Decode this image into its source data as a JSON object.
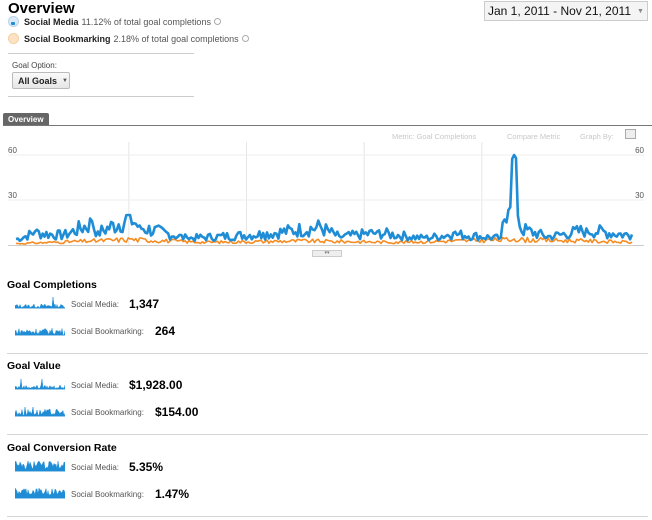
{
  "header": {
    "title": "Overview",
    "date_range": "Jan 1, 2011 - Nov 21, 2011"
  },
  "segments": [
    {
      "name": "Social Media",
      "detail": "11.12% of total goal completions",
      "color": "#1f8dd6"
    },
    {
      "name": "Social Bookmarking",
      "detail": "2.18% of total goal completions",
      "color": "#f58b21"
    }
  ],
  "goal_option": {
    "label": "Goal Option:",
    "value": "All Goals"
  },
  "tabs": {
    "overview": "Overview"
  },
  "chart_controls": {
    "metric": "Metric: Goal Completions",
    "compare": "Compare Metric",
    "graph_by": "Graph By:"
  },
  "chart_data": {
    "type": "line",
    "x_label": "Jan 1, 2011 - Nov 21, 2011",
    "ylim": [
      0,
      60
    ],
    "y_ticks": [
      {
        "value": 60,
        "label": "60"
      },
      {
        "value": 30,
        "label": "30"
      }
    ],
    "grid": true,
    "series": [
      {
        "name": "Social Media",
        "color": "#1f8dd6",
        "points": 325,
        "key_points": [
          [
            0,
            4
          ],
          [
            10,
            9
          ],
          [
            25,
            7
          ],
          [
            40,
            16
          ],
          [
            43,
            9
          ],
          [
            60,
            20
          ],
          [
            65,
            13
          ],
          [
            90,
            5
          ],
          [
            130,
            8
          ],
          [
            160,
            13
          ],
          [
            170,
            6
          ],
          [
            190,
            9
          ],
          [
            215,
            5
          ],
          [
            230,
            8
          ],
          [
            255,
            5
          ],
          [
            262,
            60
          ],
          [
            265,
            12
          ],
          [
            280,
            6
          ],
          [
            300,
            11
          ],
          [
            324,
            7
          ]
        ]
      },
      {
        "name": "Social Bookmarking",
        "color": "#f58b21",
        "points": 325,
        "key_points": [
          [
            0,
            1
          ],
          [
            40,
            3
          ],
          [
            60,
            4
          ],
          [
            100,
            2
          ],
          [
            150,
            3
          ],
          [
            200,
            2
          ],
          [
            262,
            4
          ],
          [
            300,
            3
          ],
          [
            324,
            2
          ]
        ]
      }
    ]
  },
  "sections": [
    {
      "title": "Goal Completions",
      "rows": [
        {
          "label": "Social Media:",
          "value": "1,347"
        },
        {
          "label": "Social Bookmarking:",
          "value": "264"
        }
      ]
    },
    {
      "title": "Goal Value",
      "rows": [
        {
          "label": "Social Media:",
          "value": "$1,928.00"
        },
        {
          "label": "Social Bookmarking:",
          "value": "$154.00"
        }
      ]
    },
    {
      "title": "Goal Conversion Rate",
      "rows": [
        {
          "label": "Social Media:",
          "value": "5.35%"
        },
        {
          "label": "Social Bookmarking:",
          "value": "1.47%"
        }
      ]
    }
  ]
}
